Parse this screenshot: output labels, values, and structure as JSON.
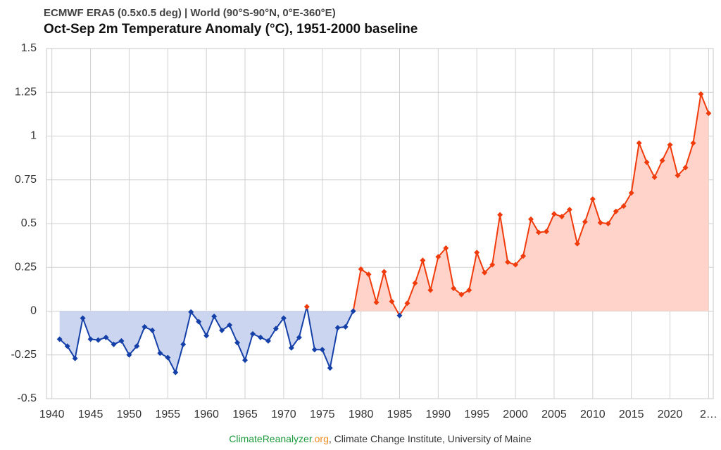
{
  "chart_data": {
    "type": "line",
    "subtitle": "ECMWF ERA5 (0.5x0.5 deg) | World (90°S-90°N, 0°E-360°E)",
    "title": "Oct-Sep 2m Temperature Anomaly (°C), 1951-2000 baseline",
    "footer": {
      "source_name": "ClimateReanalyzer",
      "source_tld": ".org",
      "source_rest": ", Climate Change Institute, University of Maine"
    },
    "x": [
      1941,
      1942,
      1943,
      1944,
      1945,
      1946,
      1947,
      1948,
      1949,
      1950,
      1951,
      1952,
      1953,
      1954,
      1955,
      1956,
      1957,
      1958,
      1959,
      1960,
      1961,
      1962,
      1963,
      1964,
      1965,
      1966,
      1967,
      1968,
      1969,
      1970,
      1971,
      1972,
      1973,
      1974,
      1975,
      1976,
      1977,
      1978,
      1979,
      1980,
      1981,
      1982,
      1983,
      1984,
      1985,
      1986,
      1987,
      1988,
      1989,
      1990,
      1991,
      1992,
      1993,
      1994,
      1995,
      1996,
      1997,
      1998,
      1999,
      2000,
      2001,
      2002,
      2003,
      2004,
      2005,
      2006,
      2007,
      2008,
      2009,
      2010,
      2011,
      2012,
      2013,
      2014,
      2015,
      2016,
      2017,
      2018,
      2019,
      2020,
      2021,
      2022,
      2023,
      2024,
      2025
    ],
    "values": [
      -0.16,
      -0.2,
      -0.27,
      -0.04,
      -0.16,
      -0.165,
      -0.15,
      -0.19,
      -0.17,
      -0.25,
      -0.2,
      -0.09,
      -0.11,
      -0.24,
      -0.265,
      -0.35,
      -0.19,
      -0.005,
      -0.06,
      -0.14,
      -0.03,
      -0.11,
      -0.08,
      -0.18,
      -0.28,
      -0.13,
      -0.15,
      -0.17,
      -0.1,
      -0.04,
      -0.21,
      -0.15,
      0.025,
      -0.22,
      -0.22,
      -0.325,
      -0.095,
      -0.09,
      0,
      0.24,
      0.21,
      0.05,
      0.225,
      0.055,
      -0.025,
      0.045,
      0.16,
      0.29,
      0.12,
      0.31,
      0.36,
      0.13,
      0.095,
      0.12,
      0.335,
      0.22,
      0.265,
      0.55,
      0.28,
      0.265,
      0.315,
      0.525,
      0.45,
      0.455,
      0.555,
      0.54,
      0.58,
      0.385,
      0.51,
      0.64,
      0.505,
      0.5,
      0.57,
      0.6,
      0.675,
      0.96,
      0.85,
      0.765,
      0.86,
      0.95,
      0.775,
      0.82,
      0.96,
      1.24,
      1.13
    ],
    "positive_color": "#f03c0c",
    "negative_color": "#1540a8",
    "positive_fill": "#ffd3ca",
    "negative_fill": "#cbd5ef",
    "xlim": [
      1939.3,
      2025.6
    ],
    "ylim": [
      -0.5,
      1.5
    ],
    "xticks": [
      1940,
      1945,
      1950,
      1955,
      1960,
      1965,
      1970,
      1975,
      1980,
      1985,
      1990,
      1995,
      2000,
      2005,
      2010,
      2015,
      2020,
      {
        "value": 2025,
        "label": "2…"
      }
    ],
    "yticks": [
      -0.5,
      -0.25,
      0,
      0.25,
      0.5,
      0.75,
      1,
      1.25,
      1.5
    ],
    "grid": true
  }
}
